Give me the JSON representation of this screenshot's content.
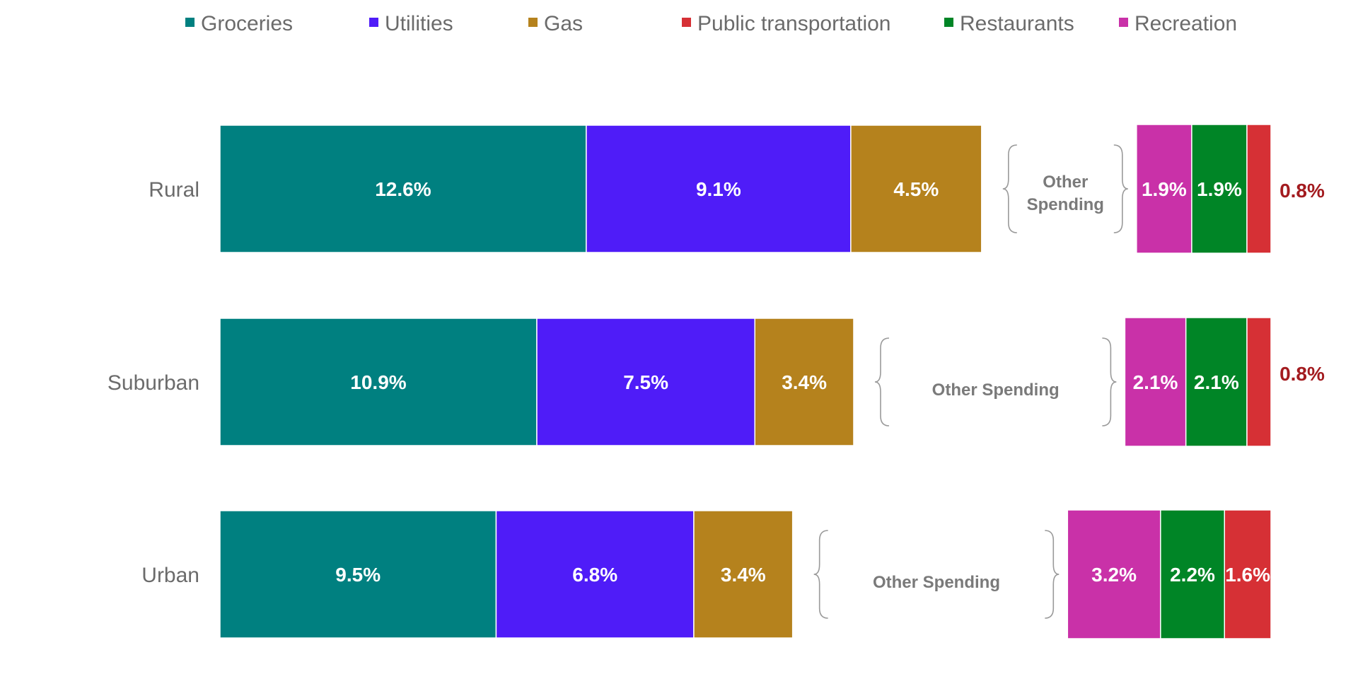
{
  "chart_data": {
    "type": "bar",
    "orientation": "horizontal",
    "stacked": true,
    "title": "",
    "xlabel": "",
    "ylabel": "",
    "categories": [
      "Rural",
      "Suburban",
      "Urban"
    ],
    "legend_position": "top",
    "grid": false,
    "series": [
      {
        "name": "Groceries",
        "color": "#008080",
        "values": [
          12.6,
          10.9,
          9.5
        ],
        "labels": [
          "12.6%",
          "10.9%",
          "9.5%"
        ]
      },
      {
        "name": "Utilities",
        "color": "#4f1cf8",
        "values": [
          9.1,
          7.5,
          6.8
        ],
        "labels": [
          "9.1%",
          "7.5%",
          "6.8%"
        ]
      },
      {
        "name": "Gas",
        "color": "#b5821d",
        "values": [
          4.5,
          3.4,
          3.4
        ],
        "labels": [
          "4.5%",
          "3.4%",
          "3.4%"
        ]
      },
      {
        "name": "Public transportation",
        "color": "#d63035",
        "values": [
          0.8,
          0.8,
          1.6
        ],
        "labels": [
          "0.8%",
          "0.8%",
          "1.6%"
        ]
      },
      {
        "name": "Restaurants",
        "color": "#008526",
        "values": [
          1.9,
          2.1,
          2.2
        ],
        "labels": [
          "1.9%",
          "2.1%",
          "2.2%"
        ]
      },
      {
        "name": "Recreation",
        "color": "#c931a8",
        "values": [
          1.9,
          2.1,
          3.2
        ],
        "labels": [
          "1.9%",
          "2.1%",
          "3.2%"
        ]
      }
    ],
    "right_group_order": [
      "Recreation",
      "Restaurants",
      "Public transportation"
    ],
    "other_spending_labels": [
      [
        "Other",
        "Spending"
      ],
      [
        "Other Spending"
      ],
      [
        "Other Spending"
      ]
    ],
    "outside_label_color": "#a31b1f"
  }
}
